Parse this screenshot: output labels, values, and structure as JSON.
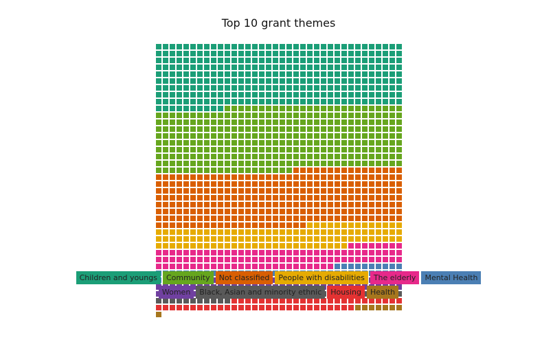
{
  "chart_data": {
    "type": "waffle",
    "title": "Top 10 grant themes",
    "columns": 36,
    "categories": [
      {
        "name": "Children and youngs",
        "count": 334,
        "color": "#1b9e77"
      },
      {
        "name": "Community",
        "count": 334,
        "color": "#66a61e"
      },
      {
        "name": "Not classified",
        "count": 290,
        "color": "#d95f02"
      },
      {
        "name": "People with disabilities",
        "count": 114,
        "color": "#e6ab02"
      },
      {
        "name": "The elderly",
        "count": 106,
        "color": "#e7298a"
      },
      {
        "name": "Mental Health",
        "count": 53,
        "color": "#4b7fb4"
      },
      {
        "name": "Women",
        "count": 71,
        "color": "#7040a0"
      },
      {
        "name": "Black, Asian and minority ethnic",
        "count": 41,
        "color": "#595959"
      },
      {
        "name": "Housing",
        "count": 54,
        "color": "#e33232"
      },
      {
        "name": "Health",
        "count": 8,
        "color": "#a6761d"
      }
    ],
    "legend_position": "bottom"
  }
}
